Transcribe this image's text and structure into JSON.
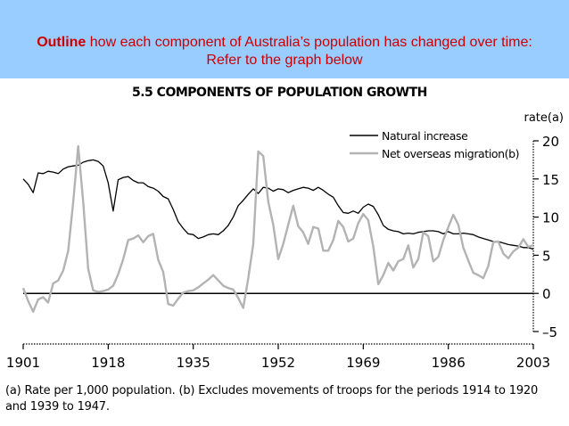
{
  "slide": {
    "heading_bold": "Outline",
    "heading_rest": "how each component of Australia’s population has changed over time: Refer to the graph below"
  },
  "footnote": "(a) Rate per 1,000 population. (b) Excludes movements of troops for the periods 1914 to 1920 and 1939 to 1947.",
  "chart_data": {
    "type": "line",
    "title": "5.5 COMPONENTS OF POPULATION GROWTH",
    "ylabel": "rate(a)",
    "xlabel": "",
    "xlim": [
      1901,
      2003
    ],
    "ylim": [
      -5,
      20
    ],
    "x_ticks": [
      1901,
      1918,
      1935,
      1952,
      1969,
      1986,
      2003
    ],
    "y_ticks": [
      -5,
      0,
      5,
      10,
      15,
      20
    ],
    "legend_position": "top-right",
    "grid": false,
    "series": [
      {
        "name": "Natural increase",
        "color": "#000000",
        "points": [
          [
            1901,
            15
          ],
          [
            1902,
            14.3
          ],
          [
            1903,
            13.2
          ],
          [
            1904,
            15.8
          ],
          [
            1905,
            15.7
          ],
          [
            1906,
            16
          ],
          [
            1907,
            15.9
          ],
          [
            1908,
            15.7
          ],
          [
            1909,
            16.3
          ],
          [
            1910,
            16.6
          ],
          [
            1911,
            16.7
          ],
          [
            1912,
            16.8
          ],
          [
            1913,
            17.2
          ],
          [
            1914,
            17.4
          ],
          [
            1915,
            17.5
          ],
          [
            1916,
            17.3
          ],
          [
            1917,
            16.7
          ],
          [
            1918,
            14.5
          ],
          [
            1919,
            10.8
          ],
          [
            1920,
            14.9
          ],
          [
            1921,
            15.2
          ],
          [
            1922,
            15.3
          ],
          [
            1923,
            14.8
          ],
          [
            1924,
            14.5
          ],
          [
            1925,
            14.5
          ],
          [
            1926,
            14
          ],
          [
            1927,
            13.8
          ],
          [
            1928,
            13.4
          ],
          [
            1929,
            12.7
          ],
          [
            1930,
            12.4
          ],
          [
            1931,
            11
          ],
          [
            1932,
            9.4
          ],
          [
            1933,
            8.5
          ],
          [
            1934,
            7.8
          ],
          [
            1935,
            7.7
          ],
          [
            1936,
            7.2
          ],
          [
            1937,
            7.4
          ],
          [
            1938,
            7.7
          ],
          [
            1939,
            7.8
          ],
          [
            1940,
            7.7
          ],
          [
            1941,
            8.2
          ],
          [
            1942,
            8.9
          ],
          [
            1943,
            10
          ],
          [
            1944,
            11.5
          ],
          [
            1945,
            12.2
          ],
          [
            1946,
            13
          ],
          [
            1947,
            13.7
          ],
          [
            1948,
            13.1
          ],
          [
            1949,
            13.9
          ],
          [
            1950,
            13.8
          ],
          [
            1951,
            13.4
          ],
          [
            1952,
            13.7
          ],
          [
            1953,
            13.6
          ],
          [
            1954,
            13.2
          ],
          [
            1955,
            13.5
          ],
          [
            1956,
            13.7
          ],
          [
            1957,
            13.9
          ],
          [
            1958,
            13.8
          ],
          [
            1959,
            13.5
          ],
          [
            1960,
            13.9
          ],
          [
            1961,
            13.5
          ],
          [
            1962,
            13
          ],
          [
            1963,
            12.6
          ],
          [
            1964,
            11.5
          ],
          [
            1965,
            10.6
          ],
          [
            1966,
            10.5
          ],
          [
            1967,
            10.8
          ],
          [
            1968,
            10.5
          ],
          [
            1969,
            11.3
          ],
          [
            1970,
            11.7
          ],
          [
            1971,
            11.4
          ],
          [
            1972,
            10.3
          ],
          [
            1973,
            8.9
          ],
          [
            1974,
            8.4
          ],
          [
            1975,
            8.2
          ],
          [
            1976,
            8.1
          ],
          [
            1977,
            7.8
          ],
          [
            1978,
            7.9
          ],
          [
            1979,
            7.8
          ],
          [
            1980,
            8
          ],
          [
            1981,
            8.1
          ],
          [
            1982,
            8.2
          ],
          [
            1983,
            8.2
          ],
          [
            1984,
            8.1
          ],
          [
            1985,
            7.8
          ],
          [
            1986,
            8.1
          ],
          [
            1987,
            7.8
          ],
          [
            1988,
            7.8
          ],
          [
            1989,
            7.9
          ],
          [
            1990,
            7.8
          ],
          [
            1991,
            7.7
          ],
          [
            1992,
            7.4
          ],
          [
            1993,
            7.2
          ],
          [
            1994,
            7
          ],
          [
            1995,
            6.8
          ],
          [
            1996,
            6.8
          ],
          [
            1997,
            6.6
          ],
          [
            1998,
            6.4
          ],
          [
            1999,
            6.3
          ],
          [
            2000,
            6.2
          ],
          [
            2001,
            6
          ],
          [
            2002,
            6
          ],
          [
            2003,
            5.8
          ]
        ]
      },
      {
        "name": "Net overseas migration(b)",
        "color": "#b3b3b3",
        "points": [
          [
            1901,
            0.7
          ],
          [
            1902,
            -1
          ],
          [
            1903,
            -2.4
          ],
          [
            1904,
            -0.8
          ],
          [
            1905,
            -0.5
          ],
          [
            1906,
            -1.2
          ],
          [
            1907,
            1.3
          ],
          [
            1908,
            1.7
          ],
          [
            1909,
            3
          ],
          [
            1910,
            5.6
          ],
          [
            1911,
            12
          ],
          [
            1912,
            19.3
          ],
          [
            1913,
            12
          ],
          [
            1914,
            3.2
          ],
          [
            1915,
            0.4
          ],
          [
            1916,
            0.2
          ],
          [
            1917,
            0.3
          ],
          [
            1918,
            0.5
          ],
          [
            1919,
            1
          ],
          [
            1920,
            2.5
          ],
          [
            1921,
            4.5
          ],
          [
            1922,
            7
          ],
          [
            1923,
            7.2
          ],
          [
            1924,
            7.6
          ],
          [
            1925,
            6.7
          ],
          [
            1926,
            7.5
          ],
          [
            1927,
            7.8
          ],
          [
            1928,
            4.4
          ],
          [
            1929,
            2.8
          ],
          [
            1930,
            -1.4
          ],
          [
            1931,
            -1.6
          ],
          [
            1932,
            -0.7
          ],
          [
            1933,
            0.1
          ],
          [
            1934,
            0.3
          ],
          [
            1935,
            0.4
          ],
          [
            1936,
            0.8
          ],
          [
            1937,
            1.3
          ],
          [
            1938,
            1.8
          ],
          [
            1939,
            2.4
          ],
          [
            1940,
            1.7
          ],
          [
            1941,
            1
          ],
          [
            1942,
            0.7
          ],
          [
            1943,
            0.5
          ],
          [
            1944,
            -0.6
          ],
          [
            1945,
            -1.9
          ],
          [
            1946,
            2
          ],
          [
            1947,
            6.5
          ],
          [
            1948,
            18.6
          ],
          [
            1949,
            18
          ],
          [
            1950,
            12
          ],
          [
            1951,
            9
          ],
          [
            1952,
            4.5
          ],
          [
            1953,
            6.5
          ],
          [
            1954,
            9
          ],
          [
            1955,
            11.5
          ],
          [
            1956,
            8.8
          ],
          [
            1957,
            8
          ],
          [
            1958,
            6.5
          ],
          [
            1959,
            8.7
          ],
          [
            1960,
            8.5
          ],
          [
            1961,
            5.6
          ],
          [
            1962,
            5.6
          ],
          [
            1963,
            7
          ],
          [
            1964,
            9.5
          ],
          [
            1965,
            8.7
          ],
          [
            1966,
            6.8
          ],
          [
            1967,
            7.2
          ],
          [
            1968,
            9.2
          ],
          [
            1969,
            10.4
          ],
          [
            1970,
            9.6
          ],
          [
            1971,
            6.2
          ],
          [
            1972,
            1.2
          ],
          [
            1973,
            2.4
          ],
          [
            1974,
            4
          ],
          [
            1975,
            3
          ],
          [
            1976,
            4.2
          ],
          [
            1977,
            4.5
          ],
          [
            1978,
            6.3
          ],
          [
            1979,
            3.4
          ],
          [
            1980,
            4.5
          ],
          [
            1981,
            8
          ],
          [
            1982,
            7.5
          ],
          [
            1983,
            4.2
          ],
          [
            1984,
            4.8
          ],
          [
            1985,
            7
          ],
          [
            1986,
            8.7
          ],
          [
            1987,
            10.3
          ],
          [
            1988,
            9
          ],
          [
            1989,
            6
          ],
          [
            1990,
            4.3
          ],
          [
            1991,
            2.7
          ],
          [
            1992,
            2.4
          ],
          [
            1993,
            2
          ],
          [
            1994,
            3.6
          ],
          [
            1995,
            6.7
          ],
          [
            1996,
            6.8
          ],
          [
            1997,
            5.2
          ],
          [
            1998,
            4.6
          ],
          [
            1999,
            5.5
          ],
          [
            2000,
            6
          ],
          [
            2001,
            7.1
          ],
          [
            2002,
            6.1
          ],
          [
            2003,
            6.3
          ]
        ]
      }
    ]
  }
}
